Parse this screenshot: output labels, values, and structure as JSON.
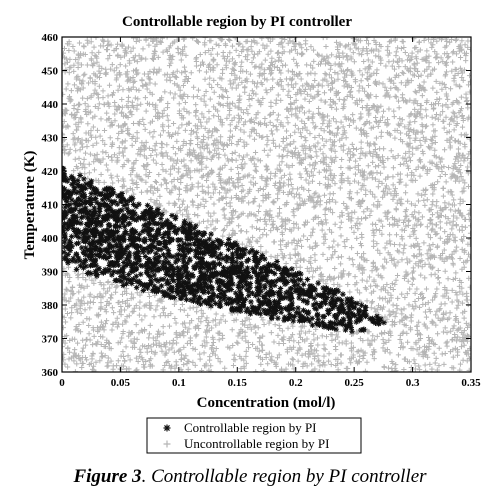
{
  "chart_data": {
    "type": "scatter",
    "title": "Controllable region by PI controller",
    "xlabel": "Concentration (mol/l)",
    "ylabel": "Temperature (K)",
    "xlim": [
      0,
      0.35
    ],
    "ylim": [
      360,
      460
    ],
    "xticks": [
      "0",
      "0.05",
      "0.1",
      "0.15",
      "0.2",
      "0.25",
      "0.3",
      "0.35"
    ],
    "yticks": [
      "360",
      "370",
      "380",
      "390",
      "400",
      "410",
      "420",
      "430",
      "440",
      "450",
      "460"
    ],
    "grid": false,
    "legend_position": "bottom-center",
    "series": [
      {
        "name": "Controllable region by PI",
        "marker": "star",
        "color": "#111111",
        "region_boundary": {
          "upper": [
            [
              0,
              421
            ],
            [
              0.05,
              413.5
            ],
            [
              0.1,
              406
            ],
            [
              0.15,
              398.5
            ],
            [
              0.2,
              390.5
            ],
            [
              0.25,
              382
            ],
            [
              0.28,
              374
            ]
          ],
          "lower": [
            [
              0,
              392
            ],
            [
              0.05,
              386
            ],
            [
              0.1,
              381.5
            ],
            [
              0.15,
              378
            ],
            [
              0.2,
              374.5
            ],
            [
              0.25,
              372
            ],
            [
              0.28,
              374
            ]
          ]
        }
      },
      {
        "name": "Uncontrollable region by PI",
        "marker": "plus",
        "color": "#b5b5b5",
        "region": "remaining area [0, 0.35] x [360, 460]"
      }
    ]
  },
  "caption": {
    "label": "Figure 3",
    "text": ". Controllable region by PI controller"
  }
}
